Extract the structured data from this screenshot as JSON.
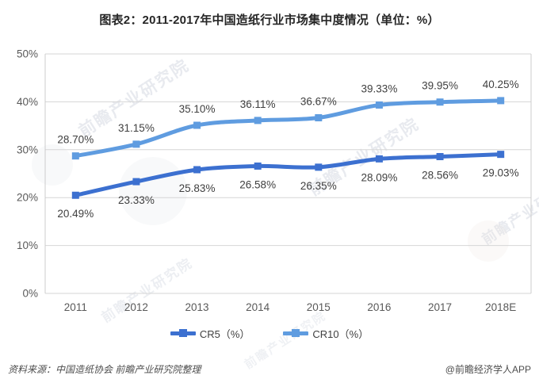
{
  "title": "图表2：2011-2017年中国造纸行业市场集中度情况（单位：%）",
  "chart_data": {
    "type": "line",
    "title": "图表2：2011-2017年中国造纸行业市场集中度情况（单位：%）",
    "categories": [
      "2011",
      "2012",
      "2013",
      "2014",
      "2015",
      "2016",
      "2017",
      "2018E"
    ],
    "series": [
      {
        "name": "CR5（%）",
        "values": [
          20.49,
          23.33,
          25.83,
          26.58,
          26.35,
          28.09,
          28.56,
          29.03
        ],
        "color": "#3c70d0",
        "label_position": "below"
      },
      {
        "name": "CR10（%）",
        "values": [
          28.7,
          31.15,
          35.1,
          36.11,
          36.67,
          39.33,
          39.95,
          40.25
        ],
        "color": "#5f9ce0",
        "label_position": "above"
      }
    ],
    "xlabel": "",
    "ylabel": "",
    "ylim": [
      0,
      50
    ],
    "ytick_step": 10,
    "ytick_suffix": "%",
    "grid": true,
    "legend_position": "bottom",
    "label_decimals": 2,
    "label_suffix": "%"
  },
  "colors": {
    "grid": "#d6d6d6",
    "axis_box": "#cccccc",
    "tick_text": "#595959",
    "data_label": "#3f3f3f"
  },
  "watermark": {
    "text": "前瞻产业研究院"
  },
  "footer": {
    "source": "资料来源：中国造纸协会  前瞻产业研究院整理",
    "credit": "@前瞻经济学人APP"
  }
}
